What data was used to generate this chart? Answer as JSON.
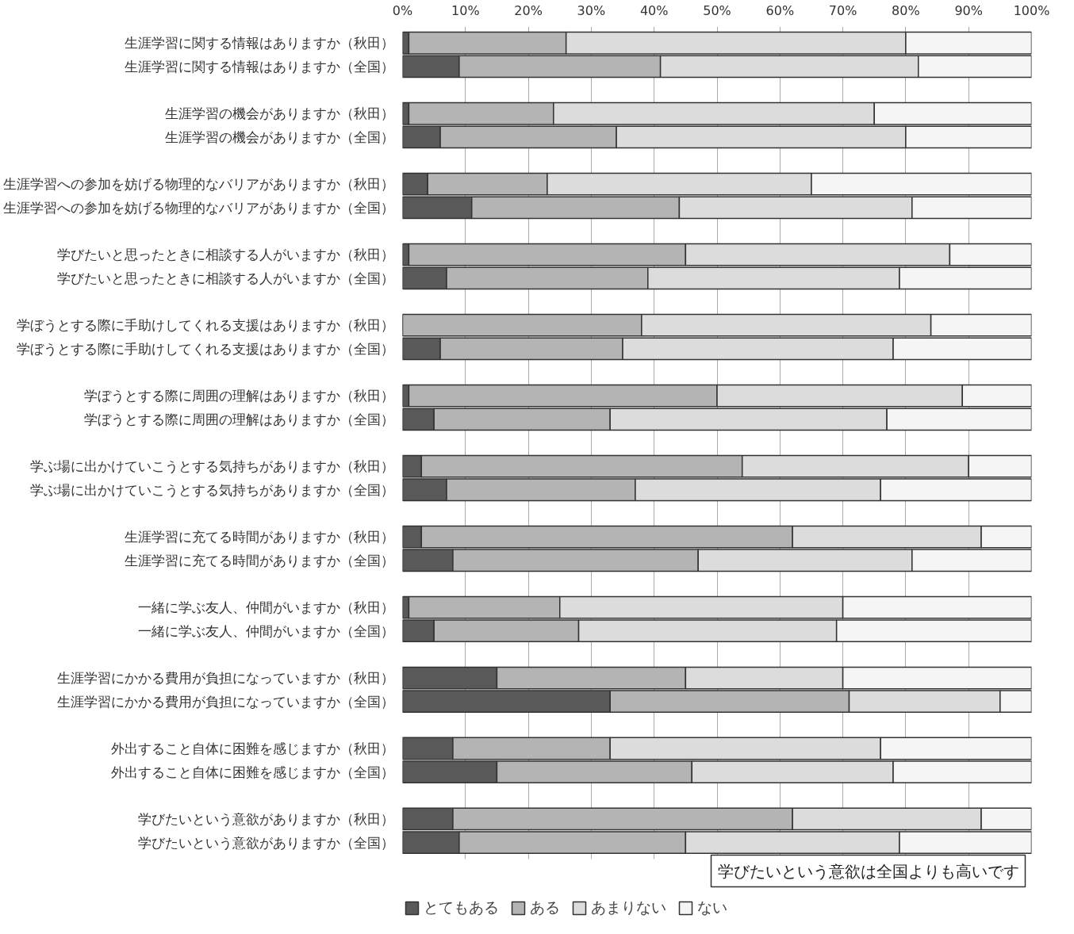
{
  "chart_data": {
    "type": "bar",
    "orientation": "horizontal",
    "stacked": true,
    "categories": [
      "生涯学習に関する情報はありますか（秋田）",
      "生涯学習に関する情報はありますか（全国）",
      "生涯学習の機会がありますか（秋田）",
      "生涯学習の機会がありますか（全国）",
      "生涯学習への参加を妨げる物理的なバリアがありますか（秋田）",
      "生涯学習への参加を妨げる物理的なバリアがありますか（全国）",
      "学びたいと思ったときに相談する人がいますか（秋田）",
      "学びたいと思ったときに相談する人がいますか（全国）",
      "学ぼうとする際に手助けしてくれる支援はありますか（秋田）",
      "学ぼうとする際に手助けしてくれる支援はありますか（全国）",
      "学ぼうとする際に周囲の理解はありますか（秋田）",
      "学ぼうとする際に周囲の理解はありますか（全国）",
      "学ぶ場に出かけていこうとする気持ちがありますか（秋田）",
      "学ぶ場に出かけていこうとする気持ちがありますか（全国）",
      "生涯学習に充てる時間がありますか（秋田）",
      "生涯学習に充てる時間がありますか（全国）",
      "一緒に学ぶ友人、仲間がいますか（秋田）",
      "一緒に学ぶ友人、仲間がいますか（全国）",
      "生涯学習にかかる費用が負担になっていますか（秋田）",
      "生涯学習にかかる費用が負担になっていますか（全国）",
      "外出すること自体に困難を感じますか（秋田）",
      "外出すること自体に困難を感じますか（全国）",
      "学びたいという意欲がありますか（秋田）",
      "学びたいという意欲がありますか（全国）"
    ],
    "series": [
      {
        "name": "とてもある",
        "color": "#595959",
        "values": [
          1,
          9,
          1,
          6,
          4,
          11,
          1,
          7,
          0,
          6,
          1,
          5,
          3,
          7,
          3,
          8,
          1,
          5,
          15,
          33,
          8,
          15,
          8,
          9
        ]
      },
      {
        "name": "ある",
        "color": "#b4b4b4",
        "values": [
          25,
          32,
          23,
          28,
          19,
          33,
          44,
          32,
          38,
          29,
          49,
          28,
          51,
          30,
          59,
          39,
          24,
          23,
          30,
          38,
          25,
          31,
          54,
          36
        ]
      },
      {
        "name": "あまりない",
        "color": "#dcdcdc",
        "values": [
          54,
          41,
          51,
          46,
          42,
          37,
          42,
          40,
          46,
          43,
          39,
          44,
          36,
          39,
          30,
          34,
          45,
          41,
          25,
          24,
          43,
          32,
          30,
          34
        ]
      },
      {
        "name": "ない",
        "color": "#f5f5f5",
        "values": [
          20,
          18,
          25,
          20,
          35,
          19,
          13,
          21,
          16,
          22,
          11,
          23,
          10,
          24,
          8,
          19,
          30,
          31,
          30,
          5,
          24,
          22,
          8,
          21
        ]
      }
    ],
    "xlim": [
      0,
      100
    ],
    "xticks": [
      {
        "value": 0,
        "label": "0%"
      },
      {
        "value": 10,
        "label": "10%"
      },
      {
        "value": 20,
        "label": "20%"
      },
      {
        "value": 30,
        "label": "30%"
      },
      {
        "value": 40,
        "label": "40%"
      },
      {
        "value": 50,
        "label": "50%"
      },
      {
        "value": 60,
        "label": "60%"
      },
      {
        "value": 70,
        "label": "70%"
      },
      {
        "value": 80,
        "label": "80%"
      },
      {
        "value": 90,
        "label": "90%"
      },
      {
        "value": 100,
        "label": "100%"
      }
    ],
    "grid": "x",
    "legend": "bottom left",
    "annotations": [
      "学びたいという意欲は全国よりも高いです"
    ]
  }
}
